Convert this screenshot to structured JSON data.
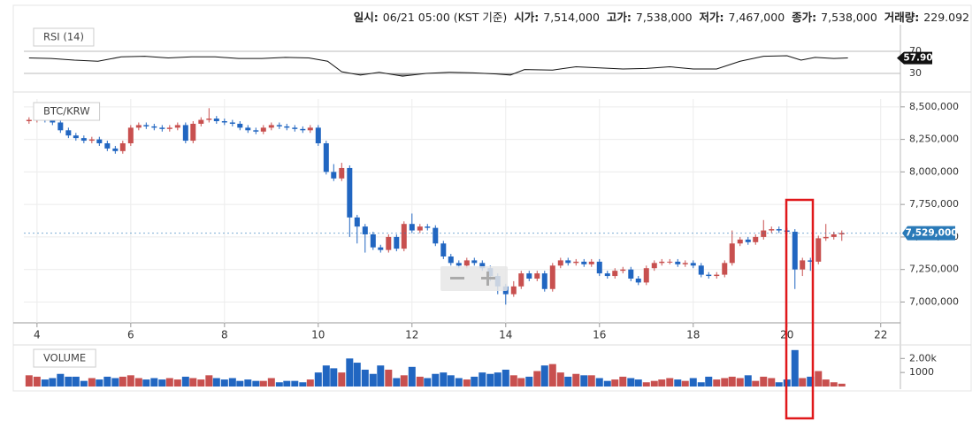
{
  "chart_data": {
    "type": "candlestick",
    "header": [
      {
        "label": "일시:",
        "value": "06/21 05:00 (KST 기준)"
      },
      {
        "label": "시가:",
        "value": "7,514,000"
      },
      {
        "label": "고가:",
        "value": "7,538,000"
      },
      {
        "label": "저가:",
        "value": "7,467,000"
      },
      {
        "label": "종가:",
        "value": "7,538,000"
      },
      {
        "label": "거래량:",
        "value": "229.092"
      }
    ],
    "title": "BTC/KRW",
    "up_color": "#c8504f",
    "down_color": "#2166c1",
    "xlim": [
      3.72,
      22.42
    ],
    "xticks": [
      4,
      6,
      8,
      10,
      12,
      14,
      16,
      18,
      20,
      22
    ],
    "ylim": [
      6840000,
      8560000
    ],
    "yticks": [
      {
        "value": 8500000,
        "label": "8,500,000"
      },
      {
        "value": 8250000,
        "label": "8,250,000"
      },
      {
        "value": 8000000,
        "label": "8,000,000"
      },
      {
        "value": 7750000,
        "label": "7,750,000"
      },
      {
        "value": 7500000,
        "label": "7,500,000"
      },
      {
        "value": 7250000,
        "label": "7,250,000"
      },
      {
        "value": 7000000,
        "label": "7,000,000"
      }
    ],
    "grid": true,
    "last_price": {
      "value": 7529000,
      "label": "7,529,000"
    },
    "x": [
      3.83,
      4,
      4.17,
      4.33,
      4.5,
      4.67,
      4.83,
      5,
      5.17,
      5.33,
      5.5,
      5.67,
      5.83,
      6,
      6.17,
      6.33,
      6.5,
      6.67,
      6.83,
      7,
      7.17,
      7.33,
      7.5,
      7.67,
      7.83,
      8,
      8.17,
      8.33,
      8.5,
      8.67,
      8.83,
      9,
      9.17,
      9.33,
      9.5,
      9.67,
      9.83,
      10,
      10.17,
      10.33,
      10.5,
      10.67,
      10.83,
      11,
      11.17,
      11.33,
      11.5,
      11.67,
      11.83,
      12,
      12.17,
      12.33,
      12.5,
      12.67,
      12.83,
      13,
      13.17,
      13.33,
      13.5,
      13.67,
      13.83,
      14,
      14.17,
      14.33,
      14.5,
      14.67,
      14.83,
      15,
      15.17,
      15.33,
      15.5,
      15.67,
      15.83,
      16,
      16.17,
      16.33,
      16.5,
      16.67,
      16.83,
      17,
      17.17,
      17.33,
      17.5,
      17.67,
      17.83,
      18,
      18.17,
      18.33,
      18.5,
      18.67,
      18.83,
      19,
      19.17,
      19.33,
      19.5,
      19.67,
      19.83,
      20,
      20.17,
      20.33,
      20.5,
      20.67,
      20.83,
      21,
      21.17
    ],
    "open": [
      8390000,
      8400000,
      8410000,
      8400000,
      8380000,
      8320000,
      8280000,
      8260000,
      8240000,
      8250000,
      8220000,
      8180000,
      8160000,
      8220000,
      8340000,
      8360000,
      8350000,
      8340000,
      8330000,
      8340000,
      8360000,
      8240000,
      8370000,
      8400000,
      8410000,
      8390000,
      8380000,
      8370000,
      8340000,
      8320000,
      8310000,
      8340000,
      8360000,
      8350000,
      8340000,
      8330000,
      8320000,
      8340000,
      8220000,
      8000000,
      7950000,
      8030000,
      7650000,
      7580000,
      7520000,
      7420000,
      7400000,
      7500000,
      7410000,
      7600000,
      7550000,
      7580000,
      7570000,
      7450000,
      7350000,
      7300000,
      7280000,
      7320000,
      7300000,
      7260000,
      7200000,
      7120000,
      7060000,
      7120000,
      7220000,
      7180000,
      7220000,
      7100000,
      7280000,
      7320000,
      7300000,
      7310000,
      7290000,
      7310000,
      7220000,
      7200000,
      7240000,
      7250000,
      7180000,
      7150000,
      7260000,
      7300000,
      7310000,
      7310000,
      7290000,
      7300000,
      7280000,
      7210000,
      7200000,
      7210000,
      7300000,
      7450000,
      7480000,
      7460000,
      7500000,
      7550000,
      7560000,
      7550000,
      7540000,
      7250000,
      7320000,
      7310000,
      7490000,
      7500000,
      7520000
    ],
    "high": [
      8420000,
      8430000,
      8430000,
      8420000,
      8400000,
      8340000,
      8300000,
      8280000,
      8270000,
      8270000,
      8240000,
      8200000,
      8240000,
      8360000,
      8380000,
      8380000,
      8370000,
      8360000,
      8360000,
      8380000,
      8380000,
      8390000,
      8420000,
      8490000,
      8430000,
      8410000,
      8400000,
      8390000,
      8360000,
      8340000,
      8360000,
      8380000,
      8380000,
      8370000,
      8360000,
      8350000,
      8360000,
      8360000,
      8240000,
      8060000,
      8070000,
      8050000,
      7670000,
      7600000,
      7540000,
      7440000,
      7520000,
      7520000,
      7620000,
      7680000,
      7600000,
      7600000,
      7590000,
      7470000,
      7370000,
      7320000,
      7340000,
      7340000,
      7320000,
      7280000,
      7220000,
      7140000,
      7160000,
      7240000,
      7240000,
      7240000,
      7240000,
      7300000,
      7340000,
      7340000,
      7330000,
      7330000,
      7330000,
      7330000,
      7240000,
      7260000,
      7270000,
      7270000,
      7200000,
      7280000,
      7320000,
      7330000,
      7330000,
      7330000,
      7320000,
      7320000,
      7300000,
      7230000,
      7230000,
      7320000,
      7550000,
      7500000,
      7500000,
      7520000,
      7630000,
      7580000,
      7580000,
      7570000,
      7560000,
      7340000,
      7340000,
      7510000,
      7600000,
      7540000,
      7550000
    ],
    "low": [
      8370000,
      8380000,
      8380000,
      8360000,
      8300000,
      8260000,
      8240000,
      8220000,
      8220000,
      8200000,
      8160000,
      8140000,
      8140000,
      8200000,
      8320000,
      8330000,
      8320000,
      8310000,
      8310000,
      8320000,
      8220000,
      8220000,
      8350000,
      8380000,
      8370000,
      8360000,
      8350000,
      8320000,
      8300000,
      8290000,
      8290000,
      8320000,
      8330000,
      8320000,
      8310000,
      8300000,
      8300000,
      8200000,
      7980000,
      7930000,
      7930000,
      7500000,
      7450000,
      7380000,
      7400000,
      7380000,
      7380000,
      7390000,
      7390000,
      7530000,
      7530000,
      7550000,
      7430000,
      7330000,
      7280000,
      7260000,
      7260000,
      7280000,
      7240000,
      7160000,
      7060000,
      6980000,
      7040000,
      7100000,
      7160000,
      7160000,
      7080000,
      7080000,
      7260000,
      7280000,
      7280000,
      7270000,
      7270000,
      7200000,
      7180000,
      7180000,
      7220000,
      7160000,
      7130000,
      7130000,
      7240000,
      7280000,
      7290000,
      7270000,
      7270000,
      7260000,
      7190000,
      7180000,
      7180000,
      7190000,
      7280000,
      7430000,
      7440000,
      7440000,
      7480000,
      7530000,
      7530000,
      7520000,
      7100000,
      7200000,
      7240000,
      7290000,
      7470000,
      7480000,
      7470000
    ],
    "close": [
      8400000,
      8410000,
      8400000,
      8380000,
      8320000,
      8280000,
      8260000,
      8240000,
      8250000,
      8220000,
      8180000,
      8160000,
      8220000,
      8340000,
      8360000,
      8350000,
      8340000,
      8330000,
      8340000,
      8360000,
      8240000,
      8370000,
      8400000,
      8410000,
      8390000,
      8380000,
      8370000,
      8340000,
      8320000,
      8310000,
      8340000,
      8360000,
      8350000,
      8340000,
      8330000,
      8320000,
      8340000,
      8220000,
      8000000,
      7950000,
      8030000,
      7650000,
      7580000,
      7520000,
      7420000,
      7400000,
      7500000,
      7410000,
      7600000,
      7550000,
      7580000,
      7570000,
      7450000,
      7350000,
      7300000,
      7280000,
      7320000,
      7300000,
      7260000,
      7200000,
      7120000,
      7060000,
      7120000,
      7220000,
      7180000,
      7220000,
      7100000,
      7280000,
      7320000,
      7300000,
      7310000,
      7290000,
      7310000,
      7220000,
      7200000,
      7240000,
      7250000,
      7180000,
      7150000,
      7260000,
      7300000,
      7310000,
      7310000,
      7290000,
      7300000,
      7280000,
      7210000,
      7200000,
      7210000,
      7300000,
      7450000,
      7480000,
      7460000,
      7500000,
      7550000,
      7560000,
      7550000,
      7540000,
      7250000,
      7320000,
      7310000,
      7490000,
      7500000,
      7520000,
      7530000
    ],
    "rsi": {
      "title": "RSI (14)",
      "color": "#111111",
      "ylim": [
        10.8,
        89.2
      ],
      "yticks": [
        70,
        30
      ],
      "last": {
        "value": 57.9,
        "label": "57.90"
      },
      "x": [
        3.83,
        4.3,
        4.8,
        5.3,
        5.8,
        6.3,
        6.8,
        7.3,
        7.8,
        8.3,
        8.8,
        9.3,
        9.8,
        10.2,
        10.5,
        10.9,
        11.3,
        11.8,
        12.3,
        12.8,
        13.3,
        13.8,
        14.1,
        14.4,
        15,
        15.5,
        16,
        16.5,
        17,
        17.5,
        18,
        18.5,
        19,
        19.5,
        20,
        20.3,
        20.6,
        21,
        21.3
      ],
      "values": [
        58,
        57,
        54,
        52,
        60,
        61,
        58,
        60,
        60,
        57,
        57,
        59,
        58,
        52,
        33,
        27,
        32,
        25,
        30,
        32,
        31,
        29,
        27,
        37,
        36,
        42,
        40,
        38,
        39,
        42,
        38,
        38,
        52,
        61,
        62,
        54,
        59,
        57,
        58
      ]
    },
    "volume": {
      "title": "VOLUME",
      "ylim": [
        0,
        2650
      ],
      "yticks": [
        {
          "value": 2000,
          "label": "2.00k"
        },
        1000
      ],
      "values": [
        800,
        700,
        500,
        600,
        900,
        700,
        700,
        400,
        600,
        500,
        700,
        600,
        700,
        800,
        600,
        500,
        600,
        500,
        600,
        500,
        700,
        600,
        500,
        800,
        600,
        500,
        600,
        400,
        500,
        400,
        400,
        600,
        300,
        400,
        400,
        300,
        500,
        1000,
        1500,
        1300,
        1000,
        2000,
        1700,
        1200,
        900,
        1500,
        1200,
        600,
        800,
        1400,
        700,
        600,
        900,
        1000,
        800,
        600,
        500,
        700,
        1000,
        900,
        1000,
        1200,
        800,
        600,
        700,
        1100,
        1500,
        1600,
        1000,
        700,
        900,
        800,
        800,
        600,
        400,
        500,
        700,
        600,
        500,
        300,
        400,
        500,
        600,
        500,
        400,
        600,
        300,
        700,
        500,
        600,
        700,
        600,
        800,
        400,
        700,
        600,
        300,
        500,
        2600,
        600,
        700,
        1100,
        500,
        300,
        200
      ]
    }
  }
}
